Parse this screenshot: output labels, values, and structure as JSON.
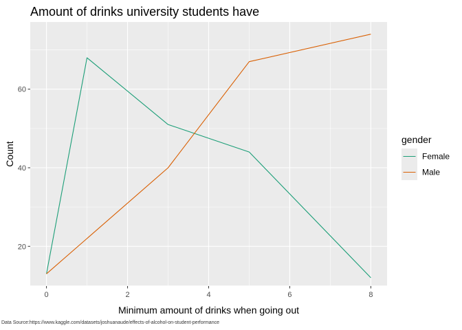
{
  "chart_data": {
    "type": "line",
    "title": "Amount of drinks university students have",
    "xlabel": "Minimum amount of drinks when going out",
    "ylabel": "Count",
    "caption": "Data Source:https://www.kaggle.com/datasets/joshuanaude/effects-of-alcohol-on-student-performance",
    "x": [
      0,
      1,
      3,
      5,
      8
    ],
    "series": [
      {
        "name": "Female",
        "color": "#1b9e77",
        "values": [
          13,
          68,
          51,
          44,
          12
        ]
      },
      {
        "name": "Male",
        "color": "#d95f02",
        "values": [
          13,
          22,
          40,
          67,
          74
        ]
      }
    ],
    "xlim": [
      -0.4,
      8.4
    ],
    "ylim": [
      9.9,
      77.1
    ],
    "xticks": [
      0,
      2,
      4,
      6,
      8
    ],
    "yticks": [
      20,
      40,
      60
    ],
    "grid": true,
    "legend": {
      "title": "gender",
      "position": "right"
    },
    "panel_bg": "#ebebeb",
    "grid_color": "#ffffff"
  }
}
